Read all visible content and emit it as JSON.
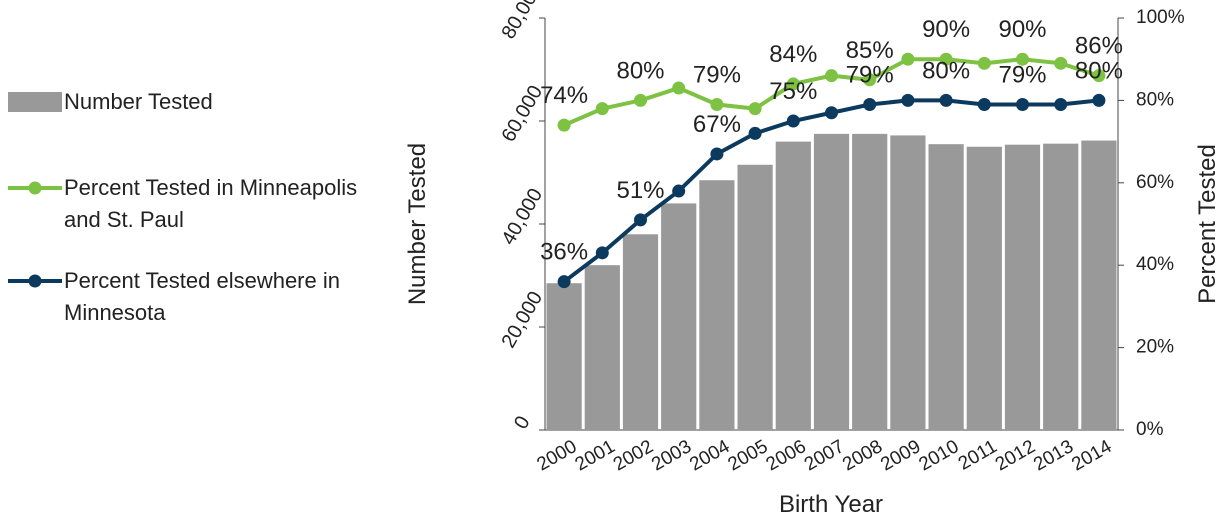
{
  "chart_data": {
    "type": "bar",
    "x_label": "Birth Year",
    "y_label": "Number Tested",
    "y2_label": "Percent Tested",
    "categories": [
      "2000",
      "2001",
      "2002",
      "2003",
      "2004",
      "2005",
      "2006",
      "2007",
      "2008",
      "2009",
      "2010",
      "2011",
      "2012",
      "2013",
      "2014"
    ],
    "series": [
      {
        "name": "Number Tested",
        "type": "bar",
        "color": "#999999",
        "values": [
          28500,
          32000,
          38000,
          44000,
          48500,
          51500,
          56000,
          57500,
          57500,
          57200,
          55500,
          55000,
          55400,
          55600,
          56200
        ]
      },
      {
        "name": "Percent Tested in Minneapolis and St. Paul",
        "type": "line",
        "axis": "y2",
        "color": "#7dc242",
        "values": [
          74,
          78,
          80,
          83,
          79,
          78,
          84,
          86,
          85,
          90,
          90,
          89,
          90,
          89,
          86
        ],
        "value_labels": [
          "74%",
          null,
          "80%",
          null,
          "79%",
          null,
          "84%",
          null,
          "85%",
          null,
          "90%",
          null,
          "90%",
          null,
          "86%"
        ]
      },
      {
        "name": "Percent Tested elsewhere in Minnesota",
        "type": "line",
        "axis": "y2",
        "color": "#0c3a5e",
        "values": [
          36,
          43,
          51,
          58,
          67,
          72,
          75,
          77,
          79,
          80,
          80,
          79,
          79,
          79,
          80
        ],
        "value_labels": [
          "36%",
          null,
          "51%",
          null,
          "67%",
          null,
          "75%",
          null,
          "79%",
          null,
          "80%",
          null,
          "79%",
          null,
          "80%"
        ]
      }
    ],
    "ylim": [
      0,
      80000
    ],
    "yticks": [
      0,
      {
        "value": 20000,
        "label": "20,000"
      },
      {
        "value": 40000,
        "label": "40,000"
      },
      {
        "value": 60000,
        "label": "60,000"
      },
      {
        "value": 80000,
        "label": "80,000"
      }
    ],
    "y2lim": [
      0,
      100
    ],
    "y2ticks": [
      {
        "value": 0,
        "label": "0%"
      },
      {
        "value": 20,
        "label": "20%"
      },
      {
        "value": 40,
        "label": "40%"
      },
      {
        "value": 60,
        "label": "60%"
      },
      {
        "value": 80,
        "label": "80%"
      },
      {
        "value": 100,
        "label": "100%"
      }
    ],
    "legend": "left"
  }
}
